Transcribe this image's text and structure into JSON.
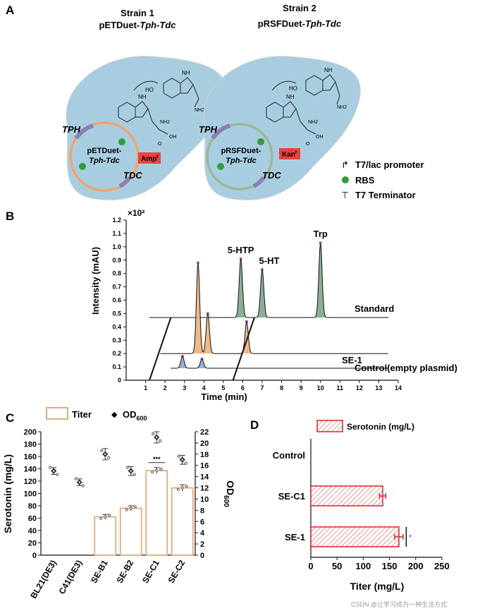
{
  "panels": {
    "a": {
      "letter": "A",
      "strain1": {
        "title": "Strain 1",
        "plasmid": "pETDuet-",
        "genes": "Tph-Tdc",
        "circle_line1": "pETDuet-",
        "circle_line2": "Tph-Tdc",
        "resistance": "Amp",
        "resistance_sup": "r"
      },
      "strain2": {
        "title": "Strain 2",
        "plasmid": "pRSFDuet-",
        "genes": "Tph-Tdc",
        "circle_line1": "pRSFDuet-",
        "circle_line2": "Tph-Tdc",
        "resistance": "Kan",
        "resistance_sup": "r"
      },
      "gene_tph": "TPH",
      "gene_tdc": "TDC",
      "molecule_labels": {
        "ho": "HO",
        "nh2": "NH2",
        "nh": "NH",
        "oh": "OH",
        "o": "O"
      },
      "legend": [
        {
          "symbol": "↱",
          "label": "T7/lac promoter"
        },
        {
          "symbol": "●",
          "label": "RBS",
          "color": "#2e9d3e"
        },
        {
          "symbol": "⊤",
          "label": "T7 Terminator"
        }
      ],
      "colors": {
        "cell": "#a9cde0",
        "arc_orange": "#f0a56a",
        "arc_green": "#9ab79b",
        "gene_purple": "#8c7fb5",
        "resist_box": "#e8423f"
      }
    },
    "b": {
      "letter": "B",
      "chart_data": {
        "type": "line",
        "title": "",
        "multiplier": "×10²",
        "xlabel": "Time (min)",
        "ylabel": "Intensity (mAU)",
        "xlim": [
          0,
          14
        ],
        "ylim": [
          0,
          1.2
        ],
        "xticks": [
          "1",
          "2",
          "3",
          "4",
          "5",
          "6",
          "7",
          "8",
          "9",
          "10",
          "11",
          "12",
          "13",
          "14"
        ],
        "yticks": [
          "0",
          "0.1",
          "0.2",
          "0.3",
          "0.4",
          "0.5",
          "0.6",
          "0.7",
          "0.8",
          "0.9",
          "1.0",
          "1.1",
          "1.2"
        ],
        "series": [
          {
            "name": "Standard",
            "baseline": 0.47,
            "color": "#7fa58a",
            "peaks": [
              {
                "x": 5.9,
                "height": 0.44,
                "label": "5-HTP"
              },
              {
                "x": 7.0,
                "height": 0.36,
                "label": "5-HT"
              },
              {
                "x": 10.0,
                "height": 0.56,
                "label": "Trp"
              }
            ]
          },
          {
            "name": "SE-1",
            "baseline": 0.2,
            "color": "#f0b27a",
            "peaks": [
              {
                "x": 3.7,
                "height": 0.68
              },
              {
                "x": 4.2,
                "height": 0.3
              },
              {
                "x": 6.2,
                "height": 0.24
              }
            ]
          },
          {
            "name": "Control(empty plasmid)",
            "baseline": 0.09,
            "color": "#8fa6cf",
            "peaks": [
              {
                "x": 2.9,
                "height": 0.09
              },
              {
                "x": 3.9,
                "height": 0.07
              }
            ]
          }
        ]
      }
    },
    "c": {
      "letter": "C",
      "chart_data": {
        "type": "bar",
        "categories": [
          "BL21(DE3)",
          "C41(DE3)",
          "SE-B1",
          "SE-B2",
          "SE-C1",
          "SE-C2"
        ],
        "legend": [
          {
            "label": "Titer"
          },
          {
            "label": "OD",
            "sub": "600"
          }
        ],
        "ylabel": "Serotonin (mg/L)",
        "y2label": "OD",
        "y2label_sub": "600",
        "ylim": [
          0,
          200
        ],
        "y2lim": [
          0,
          22
        ],
        "yticks": [
          "0",
          "20",
          "40",
          "60",
          "80",
          "100",
          "120",
          "140",
          "160",
          "180",
          "200"
        ],
        "y2ticks": [
          "0",
          "2",
          "4",
          "6",
          "8",
          "10",
          "12",
          "14",
          "16",
          "18",
          "20",
          "22"
        ],
        "titer": [
          null,
          null,
          62,
          76,
          137,
          109
        ],
        "titer_err": [
          0,
          0,
          4,
          4,
          5,
          5
        ],
        "od600": [
          15.0,
          13.0,
          18.0,
          15.0,
          21.0,
          17.0
        ],
        "od600_err": [
          0.6,
          0.6,
          1.0,
          0.8,
          1.0,
          0.8
        ],
        "significance": "***",
        "bar_color": "#e2ab84"
      }
    },
    "d": {
      "letter": "D",
      "chart_data": {
        "type": "bar",
        "orientation": "horizontal",
        "legend": "Serotonin (mg/L)",
        "categories": [
          "Control",
          "SE-C1",
          "SE-1"
        ],
        "values": [
          0,
          137,
          168
        ],
        "errors": [
          0,
          6,
          8
        ],
        "xlabel": "Titer (mg/L)",
        "xlim": [
          0,
          250
        ],
        "xticks": [
          "0",
          "50",
          "100",
          "150",
          "200",
          "250"
        ],
        "significance": "*",
        "bar_color": "#d8232a"
      }
    }
  },
  "watermark": "CSDN @让学习成为一种生活方式"
}
